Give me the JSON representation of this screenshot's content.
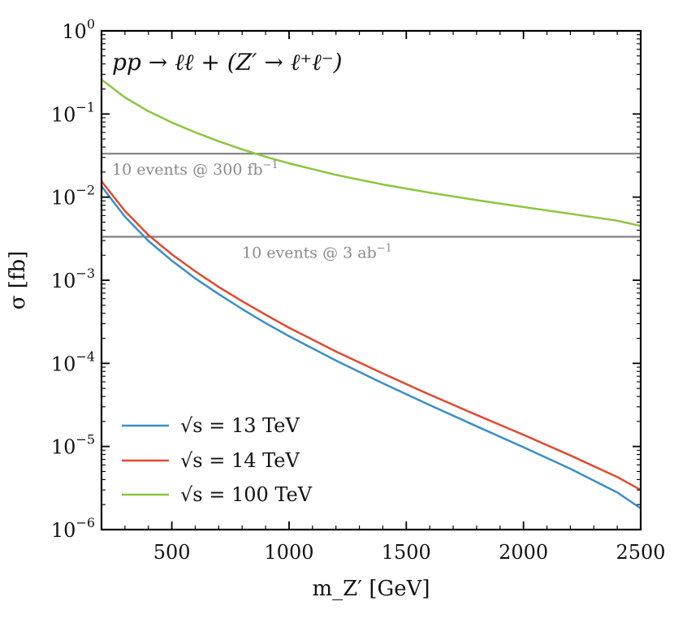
{
  "chart_data": {
    "type": "line",
    "title": "pp → ℓℓ + (Z′ → ℓ⁺ℓ⁻)",
    "xlabel": "m_Z′ [GeV]",
    "ylabel": "σ [fb]",
    "xscale": "linear",
    "yscale": "log",
    "xlim": [
      200,
      2500
    ],
    "ylim": [
      1e-06,
      1
    ],
    "xticks": [
      500,
      1000,
      1500,
      2000,
      2500
    ],
    "xtick_labels": [
      "500",
      "1000",
      "1500",
      "2000",
      "2500"
    ],
    "yticks": [
      1e-06,
      1e-05,
      0.0001,
      0.001,
      0.01,
      0.1,
      1
    ],
    "ytick_labels": [
      {
        "base": "10",
        "exp": "−6"
      },
      {
        "base": "10",
        "exp": "−5"
      },
      {
        "base": "10",
        "exp": "−4"
      },
      {
        "base": "10",
        "exp": "−3"
      },
      {
        "base": "10",
        "exp": "−2"
      },
      {
        "base": "10",
        "exp": "−1"
      },
      {
        "base": "10",
        "exp": "0"
      }
    ],
    "x": [
      200,
      300,
      400,
      500,
      600,
      700,
      800,
      900,
      1000,
      1200,
      1400,
      1600,
      1800,
      2000,
      2200,
      2400,
      2500
    ],
    "series": [
      {
        "name": "√s = 13 TeV",
        "color": "#3a8fc9",
        "values": [
          0.0135,
          0.0058,
          0.00298,
          0.00172,
          0.00105,
          0.00068,
          0.00045,
          0.000305,
          0.000212,
          0.000108,
          5.75e-05,
          3.15e-05,
          1.75e-05,
          9.8e-06,
          5.4e-06,
          2.8e-06,
          1.8e-06
        ]
      },
      {
        "name": "√s = 14 TeV",
        "color": "#e04a2e",
        "values": [
          0.0155,
          0.0068,
          0.0035,
          0.00205,
          0.00128,
          0.00083,
          0.00056,
          0.000385,
          0.000268,
          0.000139,
          7.55e-05,
          4.2e-05,
          2.4e-05,
          1.38e-05,
          7.8e-06,
          4.3e-06,
          3e-06
        ]
      },
      {
        "name": "√s = 100 TeV",
        "color": "#8cc63e",
        "values": [
          0.26,
          0.158,
          0.108,
          0.079,
          0.06,
          0.047,
          0.0375,
          0.0305,
          0.0255,
          0.0185,
          0.0142,
          0.0113,
          0.0092,
          0.0076,
          0.0063,
          0.0052,
          0.0045
        ]
      }
    ],
    "reference_lines": [
      {
        "value": 0.0333,
        "label_text": "10 events @ 300 fb",
        "label_sup": "−1",
        "color": "#808080"
      },
      {
        "value": 0.00333,
        "label_text": "10 events @ 3 ab",
        "label_sup": "−1",
        "color": "#808080"
      }
    ],
    "legend": {
      "position": "bottom-left"
    }
  }
}
